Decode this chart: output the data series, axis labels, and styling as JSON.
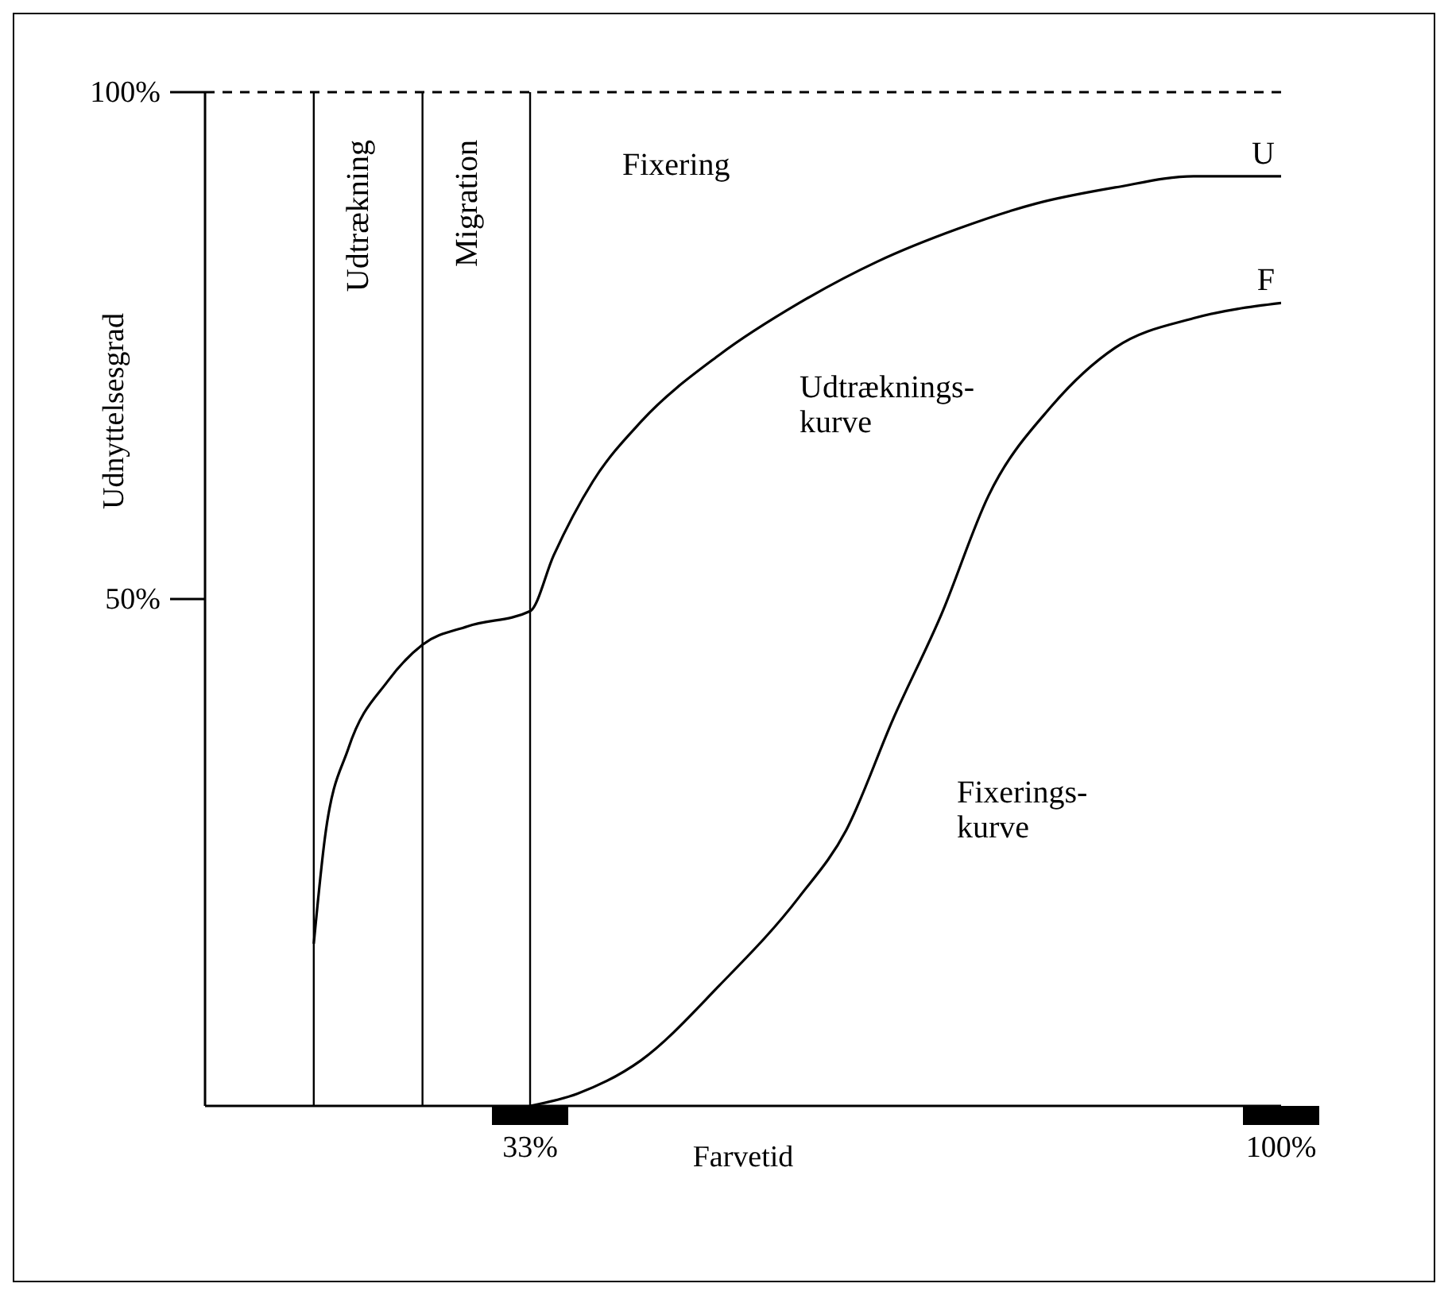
{
  "chart_data": {
    "type": "line",
    "xlabel": "Farvetid",
    "ylabel": "Udnyttelsesgrad",
    "xlim": [
      4,
      100
    ],
    "ylim": [
      0,
      100
    ],
    "xticks": [
      {
        "value": 33,
        "label": "33%"
      },
      {
        "value": 100,
        "label": "100%"
      }
    ],
    "yticks": [
      {
        "value": 50,
        "label": "50%"
      },
      {
        "value": 100,
        "label": "100%"
      }
    ],
    "series": [
      {
        "name": "U",
        "color": "#000000",
        "x": [
          13.7,
          14.7,
          16.8,
          20.3,
          23.4,
          27.4,
          33,
          35.1,
          38.6,
          42.9,
          49.9,
          57,
          64,
          71.1,
          78.1,
          85.2,
          92.2,
          100
        ],
        "values": [
          16,
          26.5,
          35.3,
          41.9,
          45.5,
          47.3,
          48.8,
          54.3,
          61.6,
          67.5,
          74.1,
          79.2,
          83.3,
          86.5,
          89,
          90.6,
          91.7,
          91.7
        ]
      },
      {
        "name": "F",
        "color": "#000000",
        "x": [
          33,
          37.2,
          42.9,
          49.9,
          57,
          61.2,
          65.4,
          69.7,
          73.9,
          79.5,
          85.2,
          92.2,
          100
        ],
        "values": [
          0,
          1.2,
          4.5,
          11.9,
          20.6,
          27.2,
          38.2,
          48.5,
          60.2,
          69,
          74.8,
          77.7,
          79.2
        ]
      }
    ],
    "ref_lines": [
      {
        "axis": "y",
        "value": 100,
        "line_style": "dashed"
      },
      {
        "axis": "x",
        "value": 13.7,
        "label": "Udtrækning"
      },
      {
        "axis": "x",
        "value": 23.4,
        "label": "Migration"
      },
      {
        "axis": "x",
        "value": 33,
        "label": "Fixering"
      }
    ],
    "annotations": [
      "Udtræknings-\nkurve",
      "Fixerings-\nkurve"
    ],
    "line_style": "solid",
    "marker": "none",
    "grid": false,
    "legend": false
  }
}
